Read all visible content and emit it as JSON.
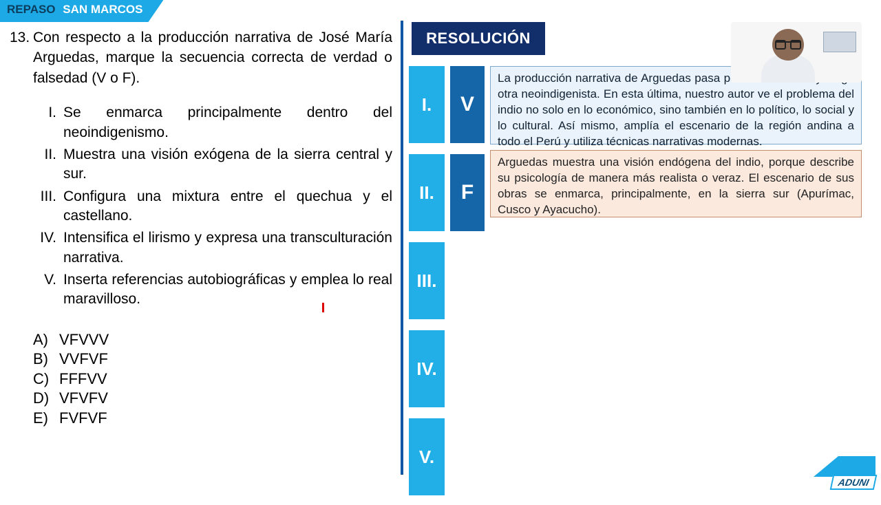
{
  "banner": {
    "left": "REPASO",
    "right": "SAN MARCOS"
  },
  "question": {
    "number": "13.",
    "text": "Con respecto a la producción narrativa de José María Arguedas, marque la secuencia correcta de verdad o falsedad (V o F)."
  },
  "statements": [
    {
      "rn": "I.",
      "tx": "Se enmarca principalmente dentro del neoindigenismo."
    },
    {
      "rn": "II.",
      "tx": "Muestra una visión exógena de la sierra central y sur."
    },
    {
      "rn": "III.",
      "tx": "Configura una mixtura entre el quechua y el castellano."
    },
    {
      "rn": "IV.",
      "tx": "Intensifica el lirismo y expresa una transculturación narrativa."
    },
    {
      "rn": "V.",
      "tx": "Inserta referencias autobiográficas y emplea lo real maravilloso."
    }
  ],
  "options": [
    {
      "lt": "A)",
      "tx": "VFVVV"
    },
    {
      "lt": "B)",
      "tx": "VVFVF"
    },
    {
      "lt": "C)",
      "tx": "FFFVV"
    },
    {
      "lt": "D)",
      "tx": "VFVFV"
    },
    {
      "lt": "E)",
      "tx": "FVFVF"
    }
  ],
  "resolution_header": "RESOLUCIÓN",
  "boxes": [
    {
      "rn": "I.",
      "ans": "V"
    },
    {
      "rn": "II.",
      "ans": "F"
    },
    {
      "rn": "III.",
      "ans": ""
    },
    {
      "rn": "IV.",
      "ans": ""
    },
    {
      "rn": "V.",
      "ans": ""
    }
  ],
  "explanations": {
    "e1": "La producción narrativa de Arguedas pasa po                     y luego otra neoindigenista. En esta última, nuestro autor ve el problema del indio no solo en lo económico, sino también en lo político, lo social y lo cultural. Así mismo, amplía el escenario de la región andina a todo el Perú y utiliza técnicas narrativas modernas.",
    "e2": "Arguedas muestra una visión endógena del indio, porque describe su psicología de manera más realista o veraz. El escenario de sus obras se enmarca, principalmente, en la sierra sur (Apurímac, Cusco y Ayacucho)."
  },
  "logo_text": "ADUNI",
  "colors": {
    "brand_light": "#1ca9e6",
    "brand_dark": "#122e6b",
    "box_light": "#22aee6",
    "box_dark": "#1566a8",
    "exp1_bg": "#eaf3fb",
    "exp2_bg": "#fbe9de"
  }
}
